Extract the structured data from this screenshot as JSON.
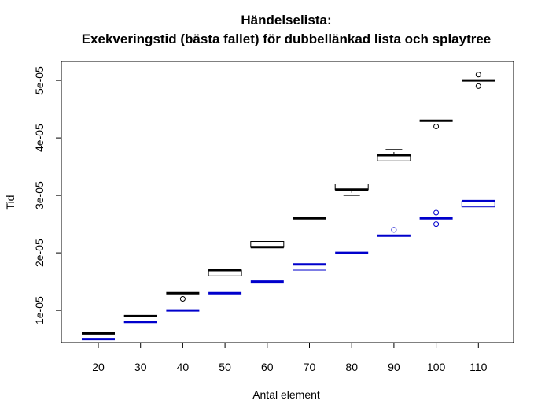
{
  "chart_data": {
    "type": "boxplot",
    "title": "Händelselista:",
    "subtitle": "Exekveringstid (bästa fallet) för dubbellänkad lista och splaytree",
    "xlabel": "Antal element",
    "ylabel": "Tid",
    "categories": [
      "20",
      "30",
      "40",
      "50",
      "60",
      "70",
      "80",
      "90",
      "100",
      "110"
    ],
    "yticks": [
      1e-05,
      2e-05,
      3e-05,
      4e-05,
      5e-05
    ],
    "ytick_labels": [
      "1e-05",
      "2e-05",
      "3e-05",
      "4e-05",
      "5e-05"
    ],
    "ylim": [
      4.4e-06,
      5.33e-05
    ],
    "grid": false,
    "series": [
      {
        "color": "#000000",
        "boxes": [
          {
            "min": 6e-06,
            "q1": 6e-06,
            "median": 6e-06,
            "q3": 6e-06,
            "max": 6e-06,
            "outliers": []
          },
          {
            "min": 9e-06,
            "q1": 9e-06,
            "median": 9e-06,
            "q3": 9e-06,
            "max": 9e-06,
            "outliers": []
          },
          {
            "min": 1.3e-05,
            "q1": 1.3e-05,
            "median": 1.3e-05,
            "q3": 1.3e-05,
            "max": 1.3e-05,
            "outliers": [
              1.2e-05
            ]
          },
          {
            "min": 1.6e-05,
            "q1": 1.6e-05,
            "median": 1.7e-05,
            "q3": 1.7e-05,
            "max": 1.7e-05,
            "outliers": []
          },
          {
            "min": 2.1e-05,
            "q1": 2.1e-05,
            "median": 2.1e-05,
            "q3": 2.2e-05,
            "max": 2.2e-05,
            "outliers": []
          },
          {
            "min": 2.6e-05,
            "q1": 2.6e-05,
            "median": 2.6e-05,
            "q3": 2.6e-05,
            "max": 2.6e-05,
            "outliers": []
          },
          {
            "min": 3e-05,
            "q1": 3.1e-05,
            "median": 3.1e-05,
            "q3": 3.2e-05,
            "max": 3.2e-05,
            "outliers": []
          },
          {
            "min": 3.6e-05,
            "q1": 3.6e-05,
            "median": 3.7e-05,
            "q3": 3.7e-05,
            "max": 3.8e-05,
            "outliers": []
          },
          {
            "min": 4.3e-05,
            "q1": 4.3e-05,
            "median": 4.3e-05,
            "q3": 4.3e-05,
            "max": 4.3e-05,
            "outliers": [
              4.2e-05
            ]
          },
          {
            "min": 5e-05,
            "q1": 5e-05,
            "median": 5e-05,
            "q3": 5e-05,
            "max": 5e-05,
            "outliers": [
              5.1e-05,
              4.9e-05
            ]
          }
        ]
      },
      {
        "color": "#0000cc",
        "boxes": [
          {
            "min": 5e-06,
            "q1": 5e-06,
            "median": 5e-06,
            "q3": 5e-06,
            "max": 5e-06,
            "outliers": []
          },
          {
            "min": 8e-06,
            "q1": 8e-06,
            "median": 8e-06,
            "q3": 8e-06,
            "max": 8e-06,
            "outliers": []
          },
          {
            "min": 1e-05,
            "q1": 1e-05,
            "median": 1e-05,
            "q3": 1e-05,
            "max": 1e-05,
            "outliers": []
          },
          {
            "min": 1.3e-05,
            "q1": 1.3e-05,
            "median": 1.3e-05,
            "q3": 1.3e-05,
            "max": 1.3e-05,
            "outliers": []
          },
          {
            "min": 1.5e-05,
            "q1": 1.5e-05,
            "median": 1.5e-05,
            "q3": 1.5e-05,
            "max": 1.5e-05,
            "outliers": []
          },
          {
            "min": 1.7e-05,
            "q1": 1.7e-05,
            "median": 1.8e-05,
            "q3": 1.8e-05,
            "max": 1.8e-05,
            "outliers": []
          },
          {
            "min": 2e-05,
            "q1": 2e-05,
            "median": 2e-05,
            "q3": 2e-05,
            "max": 2e-05,
            "outliers": []
          },
          {
            "min": 2.3e-05,
            "q1": 2.3e-05,
            "median": 2.3e-05,
            "q3": 2.3e-05,
            "max": 2.3e-05,
            "outliers": [
              2.4e-05
            ]
          },
          {
            "min": 2.6e-05,
            "q1": 2.6e-05,
            "median": 2.6e-05,
            "q3": 2.6e-05,
            "max": 2.6e-05,
            "outliers": [
              2.7e-05,
              2.5e-05
            ]
          },
          {
            "min": 2.8e-05,
            "q1": 2.8e-05,
            "median": 2.9e-05,
            "q3": 2.9e-05,
            "max": 2.9e-05,
            "outliers": []
          }
        ]
      }
    ]
  }
}
